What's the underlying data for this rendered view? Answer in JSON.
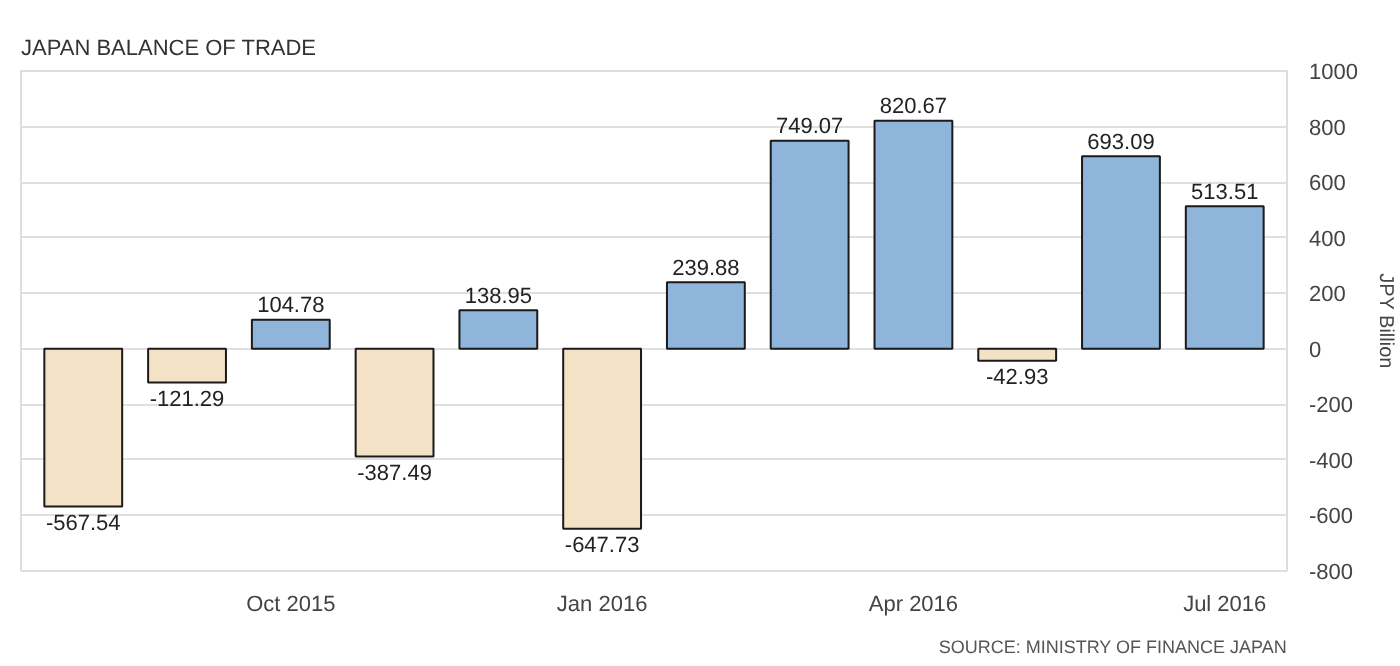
{
  "chart_data": {
    "type": "bar",
    "title": "JAPAN BALANCE OF TRADE",
    "categories": [
      null,
      null,
      "Oct 2015",
      null,
      null,
      "Jan 2016",
      null,
      null,
      "Apr 2016",
      null,
      null,
      "Jul 2016"
    ],
    "values": [
      -567.54,
      -121.29,
      104.78,
      -387.49,
      138.95,
      -647.73,
      239.88,
      749.07,
      820.67,
      -42.93,
      693.09,
      513.51
    ],
    "colors": [
      "#f3e2c6",
      "#f3e2c6",
      "#8fb5da",
      "#f3e2c6",
      "#8fb5da",
      "#f3e2c6",
      "#8fb5da",
      "#8fb5da",
      "#8fb5da",
      "#f3e2c6",
      "#8fb5da",
      "#8fb5da"
    ],
    "ylabel": "JPY Billion",
    "ylim": [
      -800,
      1000
    ],
    "yticks": [
      -800,
      -600,
      -400,
      -200,
      0,
      200,
      400,
      600,
      800,
      1000
    ],
    "grid": "y",
    "data_labels": true,
    "annotations": [
      "SOURCE: MINISTRY OF FINANCE JAPAN"
    ]
  }
}
